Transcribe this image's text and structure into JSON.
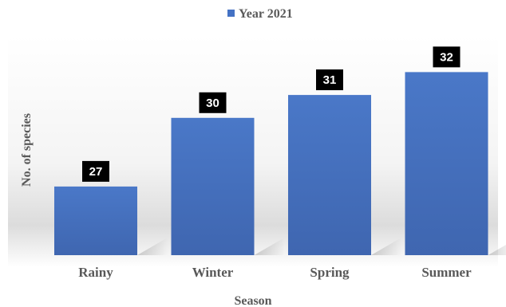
{
  "chart_data": {
    "type": "bar",
    "categories": [
      "Rainy",
      "Winter",
      "Spring",
      "Summer"
    ],
    "series": [
      {
        "name": "Year 2021",
        "values": [
          27,
          30,
          31,
          32
        ],
        "color": "#4472C4"
      }
    ],
    "xlabel": "Season",
    "ylabel": "No. of species",
    "ylim": [
      24,
      34
    ],
    "grid": false,
    "legend_position": "top-center",
    "data_labels": true,
    "data_label_background": "#000000"
  }
}
